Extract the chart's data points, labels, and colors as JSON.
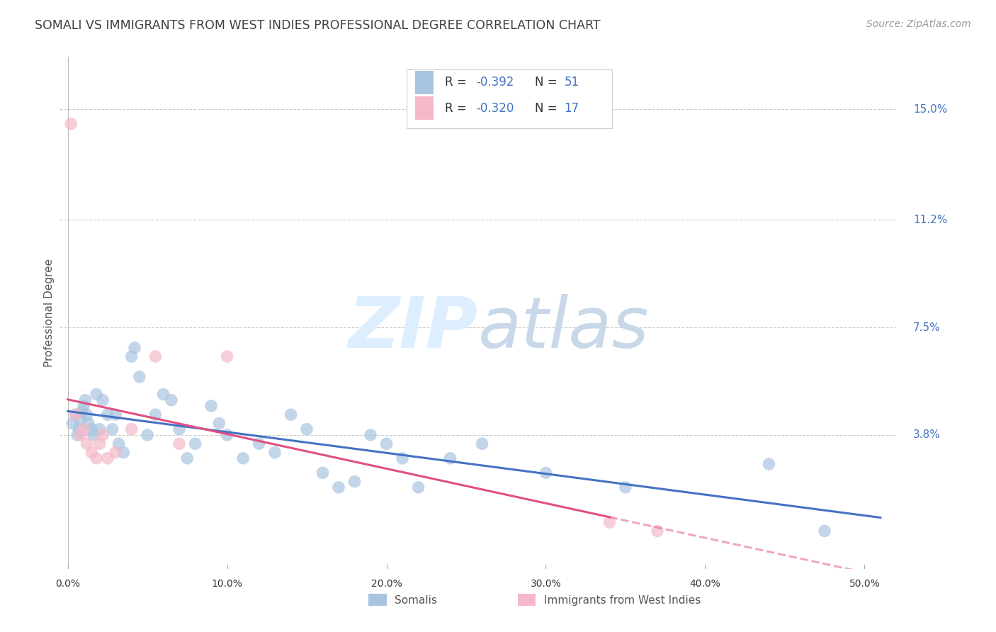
{
  "title": "SOMALI VS IMMIGRANTS FROM WEST INDIES PROFESSIONAL DEGREE CORRELATION CHART",
  "source": "Source: ZipAtlas.com",
  "ylabel": "Professional Degree",
  "xlabel_ticks": [
    "0.0%",
    "10.0%",
    "20.0%",
    "30.0%",
    "40.0%",
    "50.0%"
  ],
  "xlabel_vals": [
    0.0,
    10.0,
    20.0,
    30.0,
    40.0,
    50.0
  ],
  "ytick_labels": [
    "15.0%",
    "11.2%",
    "7.5%",
    "3.8%"
  ],
  "ytick_vals": [
    15.0,
    11.2,
    7.5,
    3.8
  ],
  "xlim": [
    -0.5,
    52.0
  ],
  "ylim": [
    -0.8,
    16.8
  ],
  "legend_label_somali": "Somalis",
  "legend_label_wi": "Immigrants from West Indies",
  "somali_color": "#a8c4e0",
  "wi_color": "#f4b8c8",
  "trendline_somali_color": "#4472c4",
  "trendline_wi_color": "#e05080",
  "background_color": "#ffffff",
  "grid_color": "#cccccc",
  "title_color": "#404040",
  "source_color": "#999999",
  "axis_label_color": "#555555",
  "ytick_color": "#4472c4",
  "r_value_color": "#4472c4",
  "somali_x": [
    0.3,
    0.5,
    0.6,
    0.7,
    0.8,
    0.9,
    1.0,
    1.1,
    1.2,
    1.3,
    1.5,
    1.6,
    1.8,
    2.0,
    2.2,
    2.5,
    2.8,
    3.0,
    3.2,
    3.5,
    4.0,
    4.2,
    4.5,
    5.0,
    5.5,
    6.0,
    6.5,
    7.0,
    7.5,
    8.0,
    9.0,
    9.5,
    10.0,
    11.0,
    12.0,
    13.0,
    14.0,
    15.0,
    16.0,
    17.0,
    18.0,
    19.0,
    20.0,
    21.0,
    22.0,
    24.0,
    26.0,
    30.0,
    35.0,
    44.0,
    47.5
  ],
  "somali_y": [
    4.2,
    4.5,
    3.8,
    4.0,
    4.3,
    4.6,
    4.8,
    5.0,
    4.5,
    4.2,
    4.0,
    3.8,
    5.2,
    4.0,
    5.0,
    4.5,
    4.0,
    4.5,
    3.5,
    3.2,
    6.5,
    6.8,
    5.8,
    3.8,
    4.5,
    5.2,
    5.0,
    4.0,
    3.0,
    3.5,
    4.8,
    4.2,
    3.8,
    3.0,
    3.5,
    3.2,
    4.5,
    4.0,
    2.5,
    2.0,
    2.2,
    3.8,
    3.5,
    3.0,
    2.0,
    3.0,
    3.5,
    2.5,
    2.0,
    2.8,
    0.5
  ],
  "wi_x": [
    0.2,
    0.5,
    0.8,
    1.0,
    1.2,
    1.5,
    1.8,
    2.0,
    2.2,
    2.5,
    3.0,
    4.0,
    5.5,
    7.0,
    10.0,
    34.0,
    37.0
  ],
  "wi_y": [
    14.5,
    4.5,
    3.8,
    4.0,
    3.5,
    3.2,
    3.0,
    3.5,
    3.8,
    3.0,
    3.2,
    4.0,
    6.5,
    3.5,
    6.5,
    0.8,
    0.5
  ],
  "watermark_zip": "ZIP",
  "watermark_atlas": "atlas",
  "watermark_color": "#ddeeff"
}
